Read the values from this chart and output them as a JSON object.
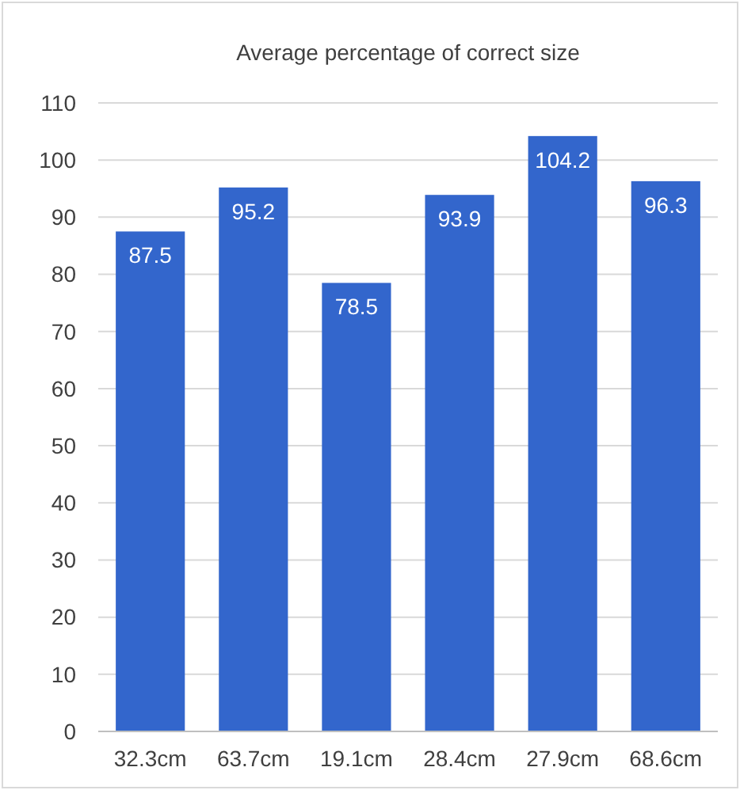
{
  "chart_data": {
    "type": "bar",
    "title": "Average percentage of correct size",
    "categories": [
      "32.3cm",
      "63.7cm",
      "19.1cm",
      "28.4cm",
      "27.9cm",
      "68.6cm"
    ],
    "values": [
      87.5,
      95.2,
      78.5,
      93.9,
      104.2,
      96.3
    ],
    "color": "#3366cc",
    "ylim": [
      0,
      110
    ],
    "yticks": [
      0,
      10,
      20,
      30,
      40,
      50,
      60,
      70,
      80,
      90,
      100,
      110
    ],
    "grid": "y",
    "data_labels": true
  }
}
